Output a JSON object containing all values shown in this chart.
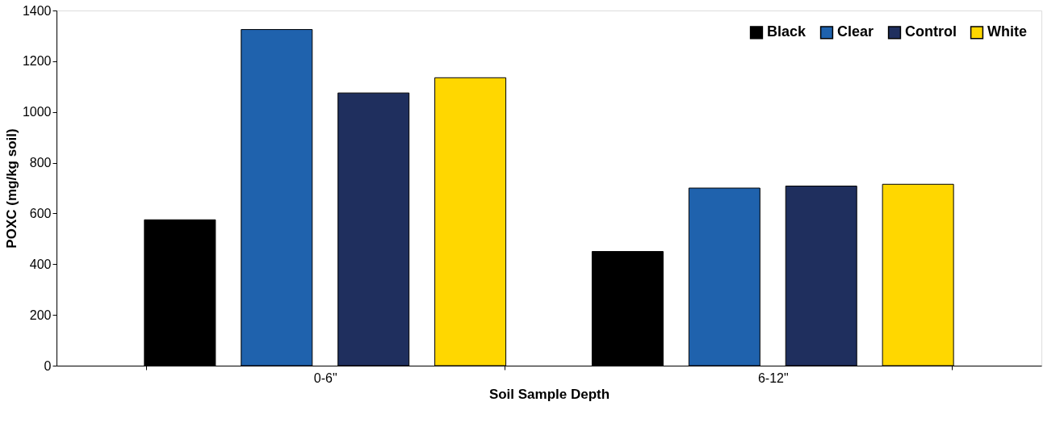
{
  "chart_data": {
    "type": "bar",
    "xlabel": "Soil Sample Depth",
    "ylabel": "POXC (mg/kg soil)",
    "categories": [
      "0-6\"",
      "6-12\""
    ],
    "series": [
      {
        "name": "Black",
        "color": "#000000",
        "values": [
          575,
          450
        ]
      },
      {
        "name": "Clear",
        "color": "#1f62ad",
        "values": [
          1325,
          700
        ]
      },
      {
        "name": "Control",
        "color": "#1f2f5e",
        "values": [
          1075,
          708
        ]
      },
      {
        "name": "White",
        "color": "#ffd700",
        "values": [
          1135,
          715
        ]
      }
    ],
    "ylim": [
      0,
      1400
    ],
    "yticks": [
      0,
      200,
      400,
      600,
      800,
      1000,
      1200,
      1400
    ],
    "grid": false,
    "legend": "top right"
  }
}
